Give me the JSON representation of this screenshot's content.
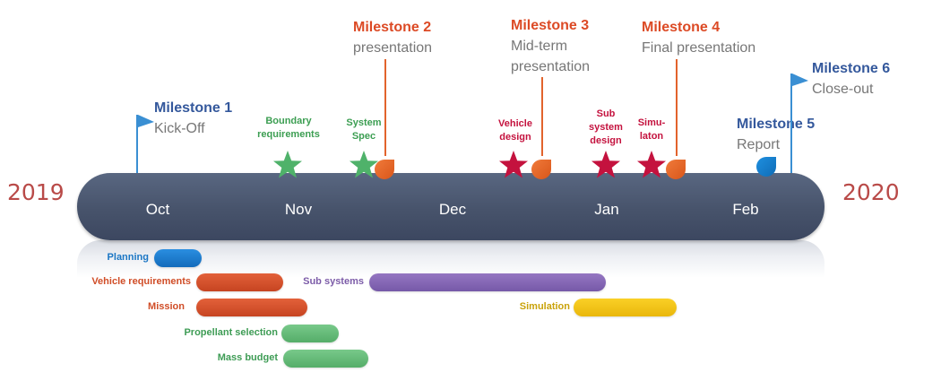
{
  "years": {
    "start": "2019",
    "end": "2020"
  },
  "months": [
    "Oct",
    "Nov",
    "Dec",
    "Jan",
    "Feb"
  ],
  "milestones": [
    {
      "title": "Milestone 1",
      "subtitle": "Kick-Off"
    },
    {
      "title": "Milestone 2",
      "subtitle": "presentation"
    },
    {
      "title": "Milestone 3",
      "subtitle_line1": "Mid-term",
      "subtitle_line2": "presentation"
    },
    {
      "title": "Milestone 4",
      "subtitle": "Final presentation"
    },
    {
      "title": "Milestone 5",
      "subtitle": "Report"
    },
    {
      "title": "Milestone 6",
      "subtitle": "Close-out"
    }
  ],
  "events": [
    {
      "line1": "Boundary",
      "line2": "requirements"
    },
    {
      "line1": "System",
      "line2": "Spec"
    },
    {
      "line1": "Vehicle",
      "line2": "design"
    },
    {
      "line1": "Sub",
      "line2": "system",
      "line3": "design"
    },
    {
      "line1": "Simu-",
      "line2": "laton"
    }
  ],
  "tasks": [
    {
      "label": "Planning"
    },
    {
      "label": "Vehicle requirements"
    },
    {
      "label": "Mission"
    },
    {
      "label": "Propellant selection"
    },
    {
      "label": "Mass budget"
    },
    {
      "label": "Sub systems"
    },
    {
      "label": "Simulation"
    }
  ],
  "colors": {
    "bar": "#47536b",
    "milestone_blue": "#34589c",
    "milestone_red": "#dc4a25",
    "star_green": "#4fb26a",
    "star_crimson": "#c4123e",
    "year": "#b94a48"
  }
}
